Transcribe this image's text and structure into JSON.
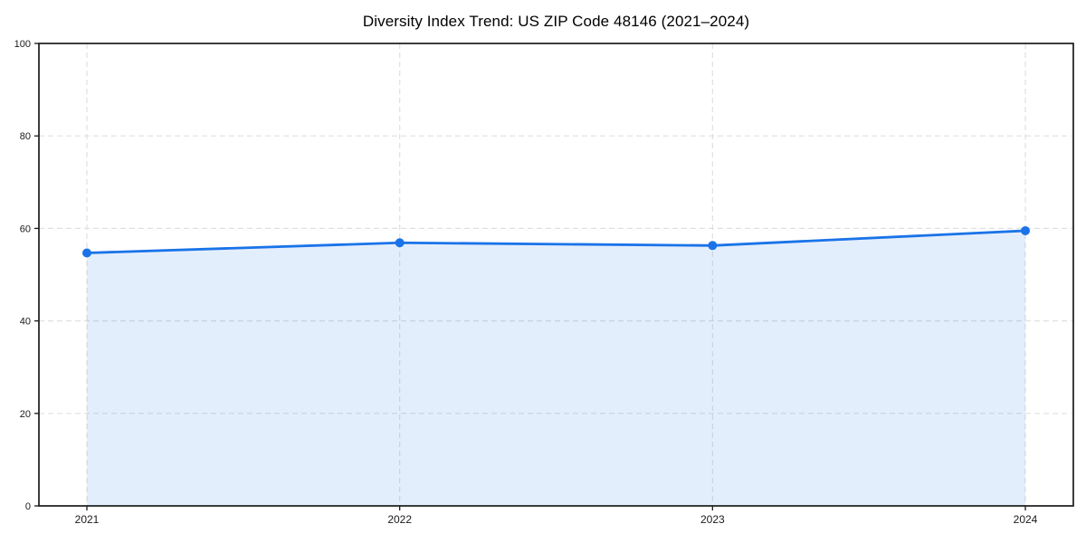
{
  "chart_data": {
    "type": "area",
    "title": "Diversity Index Trend: US ZIP Code 48146 (2021–2024)",
    "categories": [
      "2021",
      "2022",
      "2023",
      "2024"
    ],
    "series": [
      {
        "name": "Diversity Index",
        "values": [
          54.7,
          56.9,
          56.3,
          59.5
        ]
      }
    ],
    "xlabel": "",
    "ylabel": "",
    "ylim": [
      0,
      100
    ],
    "yticks": [
      0,
      20,
      40,
      60,
      80,
      100
    ],
    "grid": true,
    "grid_style": "dashed",
    "legend_position": "none",
    "colors": {
      "line": "#1a73e8",
      "marker": "#1a73e8",
      "fill": "rgba(26,115,232,0.12)",
      "gridline": "#e0e0e0",
      "spine": "#1a1a1a",
      "tick_label": "#1a1a1a",
      "background": "#ffffff"
    }
  }
}
